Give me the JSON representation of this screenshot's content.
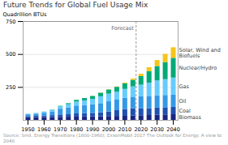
{
  "chart_data": {
    "type": "bar",
    "stacked": true,
    "title": "Future Trends for Global Fuel Usage Mix",
    "ylabel": "Quadrillion BTUs",
    "caption": "Source: Smil, Energy Transitions (1800-1960); ExxonMobil 2017 The Outlook for Energy: A view to 2040",
    "x": [
      1950,
      1955,
      1960,
      1965,
      1970,
      1975,
      1980,
      1985,
      1990,
      1995,
      2000,
      2005,
      2010,
      2015,
      2020,
      2025,
      2030,
      2035,
      2040
    ],
    "series": [
      {
        "name": "Biomass",
        "color": "#1a2580",
        "values": [
          20,
          21,
          22,
          22,
          23,
          24,
          25,
          26,
          27,
          28,
          29,
          30,
          31,
          33,
          35,
          37,
          39,
          41,
          43
        ]
      },
      {
        "name": "Coal",
        "color": "#1e50b0",
        "values": [
          9,
          10,
          11,
          14,
          18,
          19,
          24,
          25,
          26,
          29,
          35,
          44,
          52,
          55,
          52,
          52,
          54,
          55,
          56
        ]
      },
      {
        "name": "Oil",
        "color": "#3399e6",
        "values": [
          13,
          16,
          21,
          29,
          44,
          52,
          60,
          62,
          65,
          70,
          77,
          80,
          84,
          88,
          92,
          93,
          94,
          93,
          92
        ]
      },
      {
        "name": "Gas",
        "color": "#66ccff",
        "values": [
          5,
          6,
          8,
          12,
          18,
          24,
          30,
          35,
          42,
          52,
          58,
          60,
          68,
          78,
          88,
          100,
          112,
          120,
          130
        ]
      },
      {
        "name": "Nuclear/Hydro",
        "color": "#00aa77",
        "values": [
          0,
          0,
          1,
          2,
          4,
          8,
          13,
          18,
          22,
          27,
          32,
          37,
          42,
          50,
          65,
          88,
          110,
          130,
          150
        ]
      },
      {
        "name": "Solar, Wind and Biofuels",
        "color": "#f5c518",
        "values": [
          0,
          0,
          0,
          0,
          0,
          0,
          0,
          0,
          1,
          1,
          2,
          3,
          6,
          10,
          18,
          30,
          45,
          62,
          80
        ]
      }
    ],
    "xlim": [
      1947,
      2043
    ],
    "xticks": [
      1950,
      1960,
      1970,
      1980,
      1990,
      2000,
      2010,
      2020,
      2030,
      2040
    ],
    "ylim": [
      0,
      750
    ],
    "yticks": [
      250,
      500,
      750
    ],
    "grid": "y",
    "annotations": [
      {
        "text": "Forecast",
        "x": 2017,
        "line_style": "dashed"
      }
    ]
  }
}
